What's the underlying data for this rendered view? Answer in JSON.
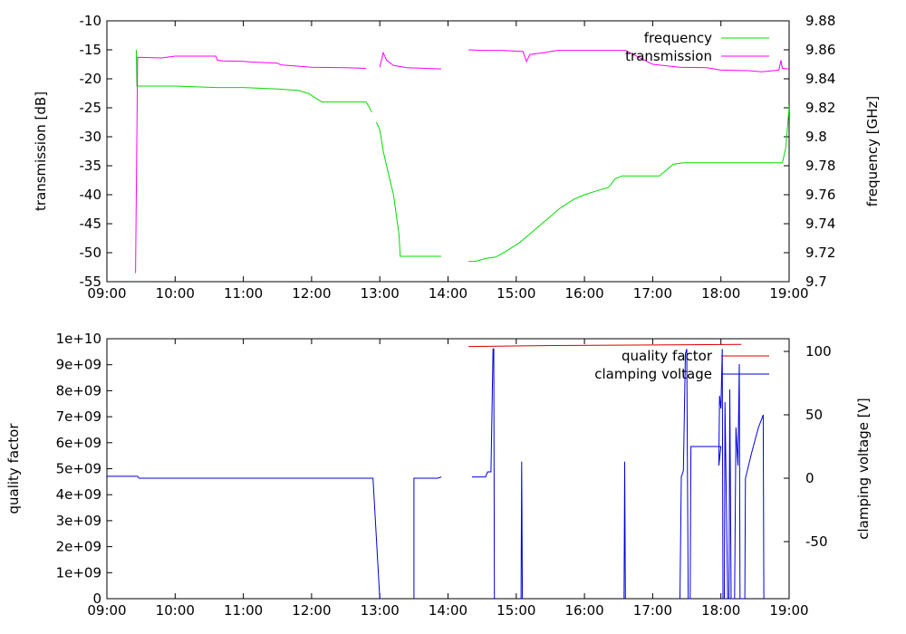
{
  "chart_data": [
    {
      "type": "line",
      "panel": "top",
      "ylabel": "transmission [dB]",
      "y2label": "frequency [GHz]",
      "xlabel": "",
      "x_ticks": [
        "09:00",
        "10:00",
        "11:00",
        "12:00",
        "13:00",
        "14:00",
        "15:00",
        "16:00",
        "17:00",
        "18:00",
        "19:00"
      ],
      "xlim": [
        9.0,
        19.0
      ],
      "ylim": [
        -55,
        -10
      ],
      "y_ticks": [
        -10,
        -15,
        -20,
        -25,
        -30,
        -35,
        -40,
        -45,
        -50,
        -55
      ],
      "y2lim": [
        9.7,
        9.88
      ],
      "y2_ticks": [
        "9.88",
        "9.86",
        "9.84",
        "9.82",
        "9.8",
        "9.78",
        "9.76",
        "9.74",
        "9.72",
        "9.7"
      ],
      "legend_position": "top-right",
      "series": [
        {
          "name": "frequency",
          "axis": "right",
          "color": "#00dd00",
          "segments": [
            [
              [
                9.43,
                9.86
              ],
              [
                9.44,
                9.835
              ],
              [
                10.0,
                9.835
              ],
              [
                10.6,
                9.834
              ],
              [
                11.0,
                9.834
              ],
              [
                11.5,
                9.833
              ],
              [
                11.8,
                9.832
              ],
              [
                11.95,
                9.83
              ],
              [
                12.05,
                9.827
              ],
              [
                12.15,
                9.824
              ],
              [
                12.8,
                9.824
              ],
              [
                12.85,
                9.82
              ],
              [
                12.88,
                9.817
              ]
            ],
            [
              [
                12.95,
                9.81
              ],
              [
                13.0,
                9.805
              ],
              [
                13.05,
                9.79
              ],
              [
                13.1,
                9.78
              ],
              [
                13.2,
                9.76
              ],
              [
                13.28,
                9.733
              ],
              [
                13.3,
                9.7175
              ],
              [
                13.9,
                9.7175
              ]
            ],
            [
              [
                14.3,
                9.714
              ],
              [
                14.4,
                9.714
              ],
              [
                14.55,
                9.716
              ],
              [
                14.7,
                9.717
              ],
              [
                14.85,
                9.721
              ],
              [
                15.05,
                9.727
              ],
              [
                15.2,
                9.733
              ],
              [
                15.35,
                9.739
              ],
              [
                15.5,
                9.745
              ],
              [
                15.65,
                9.751
              ],
              [
                15.85,
                9.757
              ],
              [
                16.0,
                9.76
              ],
              [
                16.2,
                9.763
              ],
              [
                16.35,
                9.765
              ],
              [
                16.45,
                9.771
              ],
              [
                16.55,
                9.773
              ],
              [
                17.1,
                9.773
              ],
              [
                17.3,
                9.781
              ],
              [
                17.45,
                9.782
              ],
              [
                18.0,
                9.782
              ],
              [
                18.9,
                9.782
              ],
              [
                18.95,
                9.792
              ],
              [
                19.0,
                9.82
              ],
              [
                19.02,
                9.828
              ]
            ]
          ]
        },
        {
          "name": "transmission",
          "axis": "left",
          "color": "#ff00ff",
          "segments": [
            [
              [
                9.42,
                -53.5
              ],
              [
                9.45,
                -16.3
              ],
              [
                9.8,
                -16.4
              ],
              [
                10.0,
                -16.1
              ],
              [
                10.6,
                -16.1
              ],
              [
                10.62,
                -16.8
              ],
              [
                10.7,
                -16.9
              ],
              [
                11.0,
                -17.0
              ],
              [
                11.1,
                -17.1
              ],
              [
                11.5,
                -17.3
              ],
              [
                11.55,
                -17.6
              ],
              [
                12.0,
                -18.0
              ],
              [
                12.5,
                -18.1
              ],
              [
                12.8,
                -18.2
              ]
            ],
            [
              [
                13.0,
                -18.0
              ],
              [
                13.05,
                -15.5
              ],
              [
                13.1,
                -16.8
              ],
              [
                13.2,
                -17.7
              ],
              [
                13.4,
                -18.1
              ],
              [
                13.9,
                -18.3
              ]
            ],
            [
              [
                14.3,
                -15.0
              ],
              [
                14.5,
                -15.1
              ],
              [
                14.8,
                -15.1
              ],
              [
                15.1,
                -15.3
              ],
              [
                15.15,
                -17.0
              ],
              [
                15.2,
                -15.8
              ],
              [
                15.4,
                -15.5
              ],
              [
                15.6,
                -15.1
              ],
              [
                16.2,
                -15.1
              ],
              [
                16.6,
                -15.1
              ],
              [
                16.75,
                -16.0
              ],
              [
                17.0,
                -17.5
              ],
              [
                17.4,
                -18.0
              ],
              [
                17.8,
                -18.1
              ],
              [
                18.0,
                -18.5
              ],
              [
                18.4,
                -18.6
              ],
              [
                18.6,
                -18.8
              ],
              [
                18.85,
                -18.5
              ],
              [
                18.88,
                -16.8
              ],
              [
                18.9,
                -18.2
              ],
              [
                19.0,
                -18.3
              ]
            ]
          ]
        }
      ]
    },
    {
      "type": "line",
      "panel": "bottom",
      "ylabel": "quality factor",
      "y2label": "clamping voltage [V]",
      "xlabel": "",
      "x_ticks": [
        "09:00",
        "10:00",
        "11:00",
        "12:00",
        "13:00",
        "14:00",
        "15:00",
        "16:00",
        "17:00",
        "18:00",
        "19:00"
      ],
      "xlim": [
        9.0,
        19.0
      ],
      "ylim": [
        0,
        10000000000
      ],
      "y_ticks": [
        "1e+10",
        "9e+09",
        "8e+09",
        "7e+09",
        "6e+09",
        "5e+09",
        "4e+09",
        "3e+09",
        "2e+09",
        "1e+09",
        "0"
      ],
      "y2lim": [
        -95,
        110
      ],
      "y2_ticks": [
        "100",
        "50",
        "0",
        "-50"
      ],
      "legend_position": "top-right",
      "series": [
        {
          "name": "quality factor",
          "axis": "left",
          "color": "#dd0000",
          "segments": [
            [
              [
                14.3,
                9700000000.0
              ],
              [
                15.5,
                9740000000.0
              ],
              [
                17.0,
                9760000000.0
              ],
              [
                18.3,
                9780000000.0
              ]
            ]
          ]
        },
        {
          "name": "clamping voltage",
          "axis": "right",
          "color": "#0000dd",
          "segments": [
            [
              [
                9.0,
                1.5
              ],
              [
                9.45,
                1.5
              ],
              [
                9.47,
                0
              ],
              [
                12.9,
                0
              ],
              [
                13.0,
                -95
              ]
            ],
            [
              [
                13.5,
                -95
              ],
              [
                13.5,
                0
              ],
              [
                13.85,
                0
              ],
              [
                13.9,
                1
              ]
            ],
            [
              [
                14.35,
                1
              ],
              [
                14.55,
                1
              ],
              [
                14.58,
                5
              ],
              [
                14.63,
                5
              ],
              [
                14.66,
                102
              ],
              [
                14.67,
                102
              ],
              [
                14.68,
                -95
              ]
            ],
            [
              [
                15.07,
                -95
              ],
              [
                15.08,
                13
              ],
              [
                15.09,
                -95
              ]
            ],
            [
              [
                16.58,
                -95
              ],
              [
                16.59,
                13
              ],
              [
                16.6,
                -95
              ]
            ],
            [
              [
                17.4,
                -95
              ],
              [
                17.42,
                1
              ],
              [
                17.45,
                6
              ],
              [
                17.48,
                98
              ],
              [
                17.5,
                102
              ],
              [
                17.52,
                -95
              ],
              [
                17.55,
                -95
              ],
              [
                17.56,
                25
              ],
              [
                18.0,
                25
              ],
              [
                17.97,
                10
              ],
              [
                17.98,
                65
              ],
              [
                18.0,
                55
              ],
              [
                18.02,
                102
              ],
              [
                18.03,
                -95
              ],
              [
                18.05,
                -95
              ],
              [
                18.06,
                60
              ],
              [
                18.1,
                -95
              ],
              [
                18.12,
                -95
              ],
              [
                18.13,
                70
              ],
              [
                18.15,
                -95
              ],
              [
                18.2,
                -95
              ],
              [
                18.22,
                40
              ],
              [
                18.25,
                10
              ],
              [
                18.27,
                90
              ],
              [
                18.28,
                -95
              ],
              [
                18.35,
                -95
              ],
              [
                18.36,
                0
              ],
              [
                18.45,
                20
              ],
              [
                18.55,
                40
              ],
              [
                18.6,
                47
              ],
              [
                18.62,
                50
              ],
              [
                18.63,
                -95
              ]
            ]
          ]
        }
      ]
    }
  ]
}
